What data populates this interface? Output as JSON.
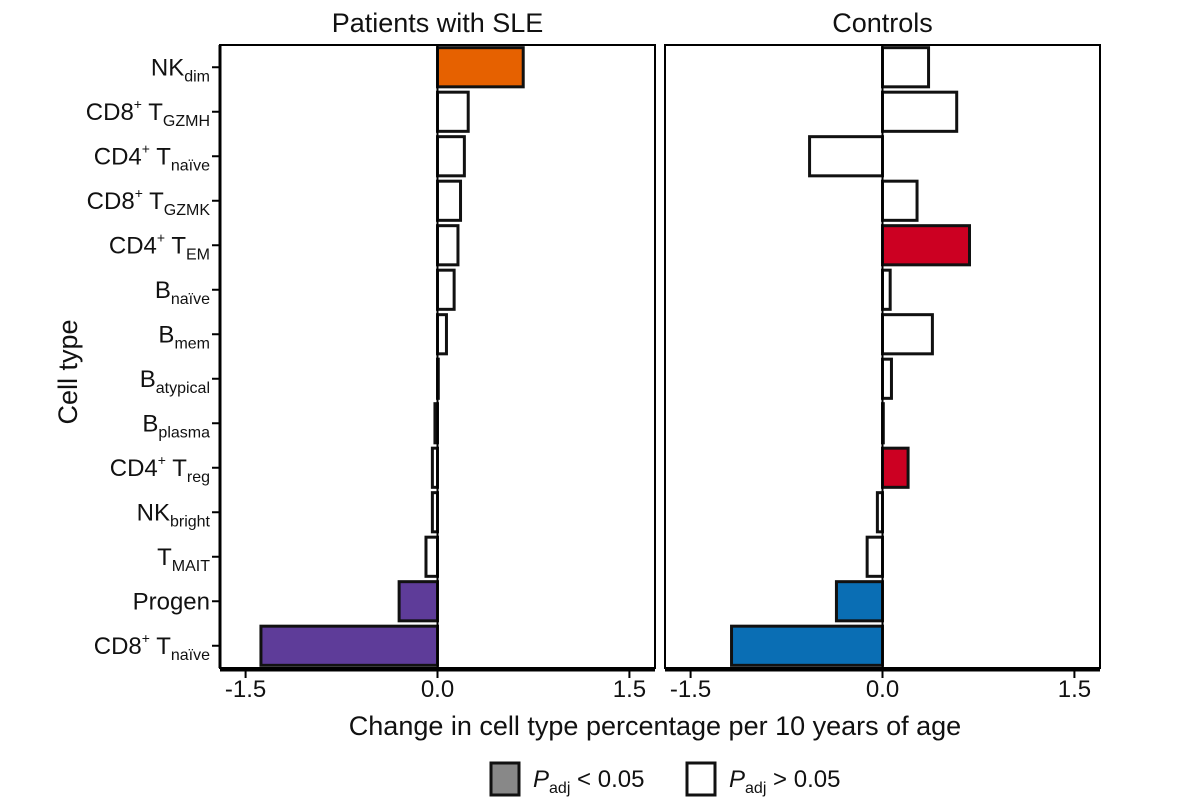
{
  "chart_data": {
    "type": "bar",
    "orientation": "horizontal",
    "ylabel": "Cell type",
    "xlabel": "Change in cell type percentage per 10 years of age",
    "xlim": [
      -1.7,
      1.7
    ],
    "xticks": [
      -1.5,
      0.0,
      1.5
    ],
    "xtick_labels": [
      "-1.5",
      "0.0",
      "1.5"
    ],
    "categories": [
      {
        "main": "NK",
        "sup": "",
        "sub": "dim"
      },
      {
        "main": "CD8",
        "sup": "+",
        "main2": " T",
        "sub": "GZMH"
      },
      {
        "main": "CD4",
        "sup": "+",
        "main2": " T",
        "sub": "naïve"
      },
      {
        "main": "CD8",
        "sup": "+",
        "main2": " T",
        "sub": "GZMK"
      },
      {
        "main": "CD4",
        "sup": "+",
        "main2": " T",
        "sub": "EM"
      },
      {
        "main": "B",
        "sup": "",
        "sub": "naïve"
      },
      {
        "main": "B",
        "sup": "",
        "sub": "mem"
      },
      {
        "main": "B",
        "sup": "",
        "sub": "atypical"
      },
      {
        "main": "B",
        "sup": "",
        "sub": "plasma"
      },
      {
        "main": "CD4",
        "sup": "+",
        "main2": " T",
        "sub": "reg"
      },
      {
        "main": "NK",
        "sup": "",
        "sub": "bright"
      },
      {
        "main": "T",
        "sup": "",
        "sub": "MAIT"
      },
      {
        "main": "Progen",
        "sup": "",
        "sub": ""
      },
      {
        "main": "CD8",
        "sup": "+",
        "main2": " T",
        "sub": "naïve"
      }
    ],
    "panels": [
      {
        "title": "Patients with SLE",
        "values": [
          0.67,
          0.24,
          0.21,
          0.18,
          0.16,
          0.13,
          0.07,
          0.0,
          -0.02,
          -0.04,
          -0.04,
          -0.09,
          -0.3,
          -1.38
        ],
        "significant": [
          true,
          false,
          false,
          false,
          false,
          false,
          false,
          false,
          false,
          false,
          false,
          false,
          true,
          true
        ],
        "colors": [
          "#E66100",
          "#ffffff",
          "#ffffff",
          "#ffffff",
          "#ffffff",
          "#ffffff",
          "#ffffff",
          "#ffffff",
          "#ffffff",
          "#ffffff",
          "#ffffff",
          "#ffffff",
          "#5E3C99",
          "#5E3C99"
        ]
      },
      {
        "title": "Controls",
        "values": [
          0.36,
          0.58,
          -0.57,
          0.27,
          0.68,
          0.06,
          0.39,
          0.07,
          0.0,
          0.2,
          -0.04,
          -0.12,
          -0.36,
          -1.18
        ],
        "significant": [
          false,
          false,
          false,
          false,
          true,
          false,
          false,
          false,
          false,
          true,
          false,
          false,
          true,
          true
        ],
        "colors": [
          "#ffffff",
          "#ffffff",
          "#ffffff",
          "#ffffff",
          "#CC0022",
          "#ffffff",
          "#ffffff",
          "#ffffff",
          "#ffffff",
          "#CC0022",
          "#ffffff",
          "#ffffff",
          "#0A6EB4",
          "#0A6EB4"
        ]
      }
    ],
    "legend": {
      "placement": "bottom",
      "items": [
        {
          "symbol": "P",
          "sub": "adj",
          "text": " < 0.05",
          "fill": "#888888"
        },
        {
          "symbol": "P",
          "sub": "adj",
          "text": " > 0.05",
          "fill": "#ffffff"
        }
      ]
    }
  }
}
